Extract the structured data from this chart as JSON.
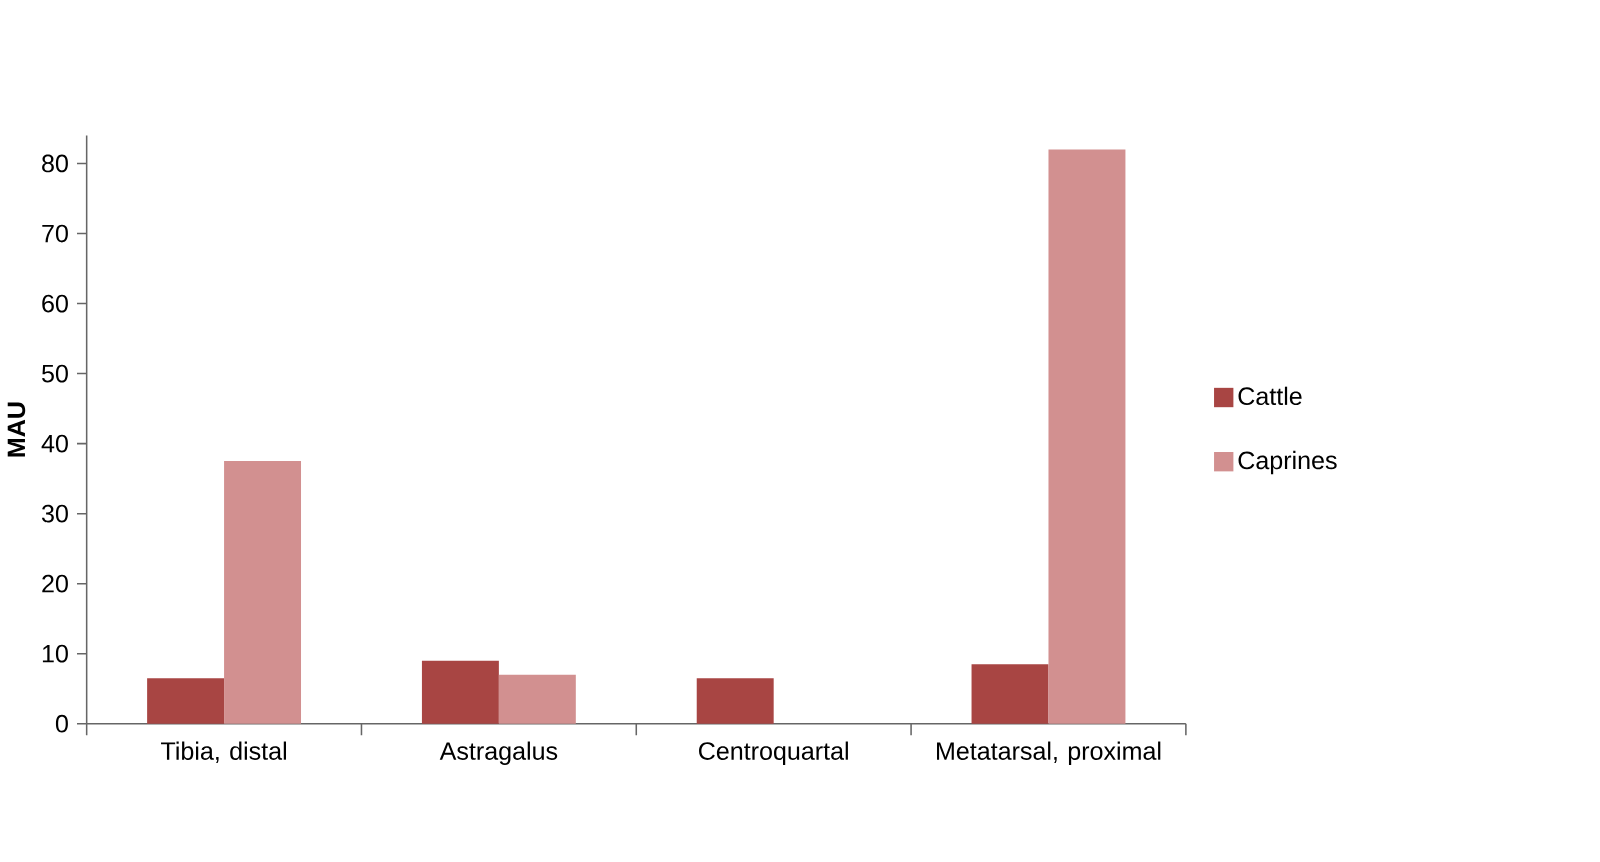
{
  "chart_data": {
    "type": "bar",
    "ylabel": "MAU",
    "categories": [
      "Tibia, distal",
      "Astragalus",
      "Centroquartal",
      "Metatarsal, proximal"
    ],
    "series": [
      {
        "name": "Cattle",
        "color": "#a84543",
        "values": [
          6.5,
          9,
          6.5,
          8.5
        ]
      },
      {
        "name": "Caprines",
        "color": "#d29090",
        "values": [
          37.5,
          7,
          0,
          82
        ]
      }
    ],
    "ylim": [
      0,
      84
    ],
    "yticks": [
      0,
      10,
      20,
      30,
      40,
      50,
      60,
      70,
      80
    ],
    "grid": false,
    "legend": "right"
  }
}
